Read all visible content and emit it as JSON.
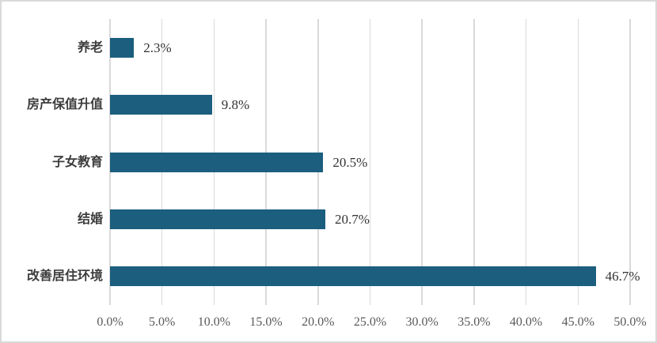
{
  "chart_data": {
    "type": "bar",
    "orientation": "horizontal",
    "title": "",
    "categories": [
      "养老",
      "房产保值升值",
      "子女教育",
      "结婚",
      "改善居住环境"
    ],
    "values": [
      2.3,
      9.8,
      20.5,
      20.7,
      46.7
    ],
    "value_labels": [
      "2.3%",
      "9.8%",
      "20.5%",
      "20.7%",
      "46.7%"
    ],
    "x_tick_labels": [
      "0.0%",
      "5.0%",
      "10.0%",
      "15.0%",
      "20.0%",
      "25.0%",
      "30.0%",
      "35.0%",
      "40.0%",
      "45.0%",
      "50.0%"
    ],
    "xlim": [
      0,
      50
    ],
    "x_tick_step": 5,
    "grid": "vertical-only",
    "legend": "none"
  },
  "colors": {
    "bar": "#1B5E7E",
    "gridline": "#D9D9D9",
    "frame_border": "#D9D9D9",
    "background": "#FFFFFF",
    "tick_label": "#595959",
    "category_label": "#3D3D3D",
    "value_label": "#333333"
  }
}
